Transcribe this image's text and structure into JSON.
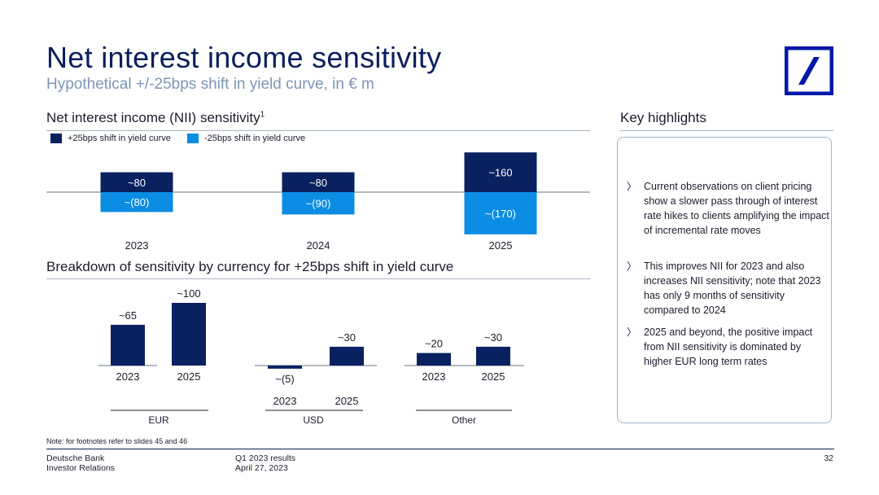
{
  "header": {
    "title": "Net interest income sensitivity",
    "subtitle": "Hypothetical +/-25bps shift in yield curve, in € m"
  },
  "colors": {
    "navy": "#0a2160",
    "cyan": "#0a8de3",
    "logo_blue": "#0018a8"
  },
  "nii_section": {
    "heading": "Net interest income (NII) sensitivity",
    "footnote_marker": "1",
    "legend": [
      {
        "label": "+25bps shift in yield curve",
        "color": "#0a2160"
      },
      {
        "label": "-25bps shift in yield curve",
        "color": "#0a8de3"
      }
    ]
  },
  "breakdown_section": {
    "heading": "Breakdown of sensitivity by currency for +25bps shift in yield curve"
  },
  "chart_data": [
    {
      "type": "bar",
      "categories": [
        "2023",
        "2024",
        "2025"
      ],
      "series": [
        {
          "name": "+25bps shift in yield curve",
          "values": [
            80,
            80,
            160
          ],
          "labels": [
            "~80",
            "~80",
            "~160"
          ]
        },
        {
          "name": "-25bps shift in yield curve",
          "values": [
            -80,
            -90,
            -170
          ],
          "labels": [
            "~(80)",
            "~(90)",
            "~(170)"
          ]
        }
      ],
      "stacked": true
    },
    {
      "type": "bar",
      "group_label": "EUR",
      "categories": [
        "2023",
        "2025"
      ],
      "values": [
        65,
        100
      ],
      "labels": [
        "~65",
        "~100"
      ]
    },
    {
      "type": "bar",
      "group_label": "USD",
      "categories": [
        "2023",
        "2025"
      ],
      "values": [
        -5,
        30
      ],
      "labels": [
        "~(5)",
        "~30"
      ]
    },
    {
      "type": "bar",
      "group_label": "Other",
      "categories": [
        "2023",
        "2025"
      ],
      "values": [
        20,
        30
      ],
      "labels": [
        "~20",
        "~30"
      ]
    }
  ],
  "highlights": {
    "heading": "Key highlights",
    "marker": "〉",
    "items": [
      "Current observations on client pricing show a slower pass through of interest rate hikes to clients amplifying the impact of incremental rate moves",
      "This improves NII for 2023 and also increases NII sensitivity; note that 2023 has only 9 months of sensitivity compared to 2024",
      "2025 and beyond, the positive impact from NII sensitivity is dominated by higher EUR long term rates"
    ]
  },
  "footer": {
    "note": "Note: for footnotes refer to slides 45 and 46",
    "company": "Deutsche Bank",
    "department": "Investor Relations",
    "report": "Q1 2023 results",
    "date": "April 27, 2023",
    "page": "32"
  }
}
